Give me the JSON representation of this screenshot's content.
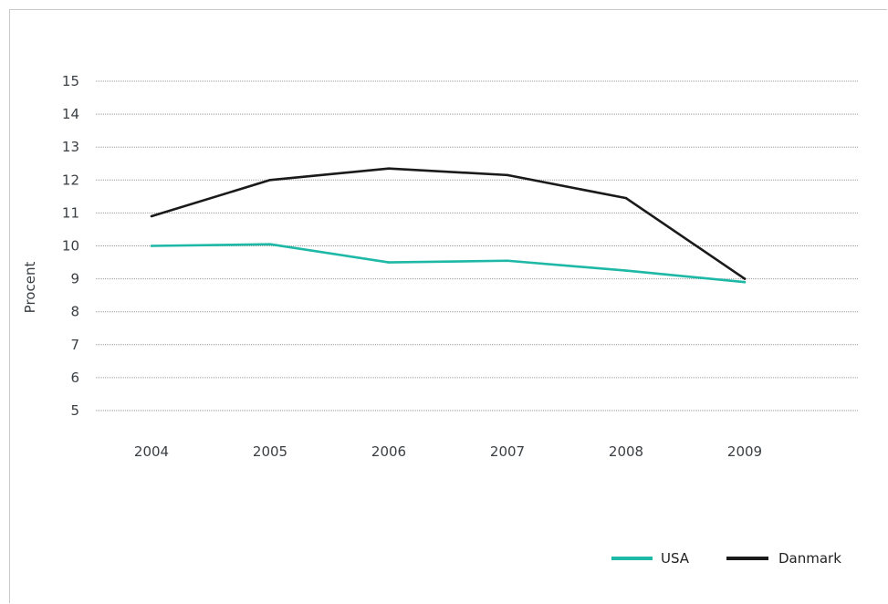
{
  "chart_data": {
    "type": "line",
    "title": "",
    "xlabel": "",
    "ylabel": "Procent",
    "categories": [
      "2004",
      "2005",
      "2006",
      "2007",
      "2008",
      "2009"
    ],
    "y_ticks": [
      "5",
      "6",
      "7",
      "8",
      "9",
      "10",
      "11",
      "12",
      "13",
      "14",
      "15"
    ],
    "ylim": [
      5,
      15
    ],
    "grid": "horizontal dotted",
    "legend_position": "bottom-right",
    "series": [
      {
        "name": "USA",
        "color": "#1db8a6",
        "values": [
          10.0,
          10.05,
          9.5,
          9.55,
          9.25,
          8.9
        ]
      },
      {
        "name": "Danmark",
        "color": "#1a1a1a",
        "values": [
          10.9,
          12.0,
          12.35,
          12.15,
          11.45,
          9.0
        ]
      }
    ]
  }
}
